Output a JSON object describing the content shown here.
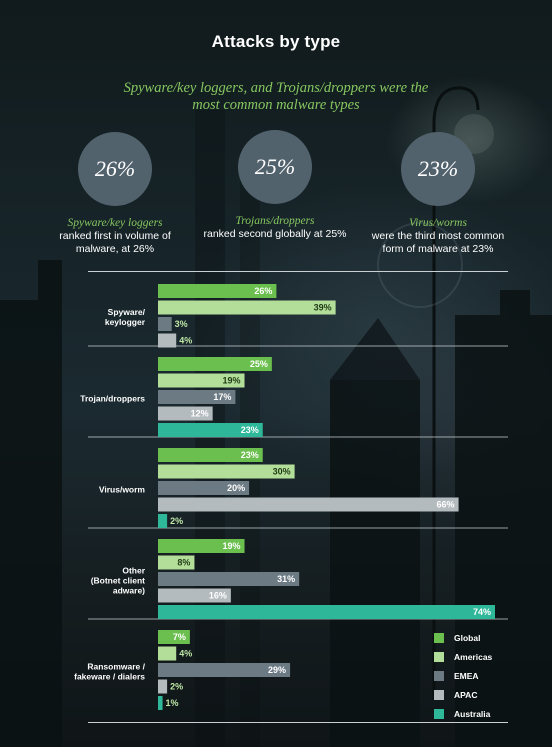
{
  "title": "Attacks by type",
  "subtitle": "Spyware/key loggers, and Trojans/droppers were the most common malware types",
  "stats": [
    {
      "value": "26%",
      "highlight": "Spyware/key loggers",
      "text": "ranked first in volume of malware, at 26%"
    },
    {
      "value": "25%",
      "highlight": "Trojans/droppers",
      "text": "ranked second globally at 25%"
    },
    {
      "value": "23%",
      "highlight": "Virus/worms",
      "text": "were the third most common form of malware at 23%"
    }
  ],
  "colors": {
    "Global": "#6bbf4e",
    "Americas": "#b3de9a",
    "EMEA": "#6c7a84",
    "APAC": "#b4bbbf",
    "Australia": "#2fb79a"
  },
  "chart_data": {
    "type": "bar",
    "orientation": "horizontal",
    "categories": [
      [
        "Spyware/",
        "keylogger"
      ],
      [
        "Trojan/droppers"
      ],
      [
        "Virus/worm"
      ],
      [
        "Other",
        "(Botnet client",
        "adware)"
      ],
      [
        "Ransomware /",
        "fakeware / dialers"
      ]
    ],
    "series": [
      {
        "name": "Global",
        "values": [
          26,
          25,
          23,
          19,
          7
        ]
      },
      {
        "name": "Americas",
        "values": [
          39,
          19,
          30,
          8,
          4
        ]
      },
      {
        "name": "EMEA",
        "values": [
          3,
          17,
          20,
          31,
          29
        ]
      },
      {
        "name": "APAC",
        "values": [
          4,
          12,
          66,
          16,
          2
        ]
      },
      {
        "name": "Australia",
        "values": [
          null,
          23,
          2,
          74,
          1
        ]
      }
    ],
    "value_suffix": "%",
    "xlim": [
      0,
      74
    ],
    "grid": false,
    "legend": "bottom-right"
  }
}
